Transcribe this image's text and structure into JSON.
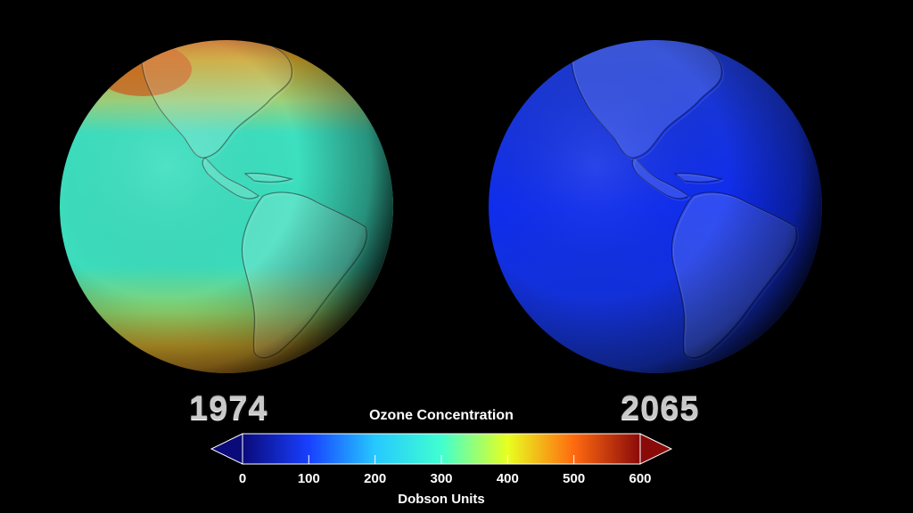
{
  "panels": {
    "left_year": "1974",
    "right_year": "2065"
  },
  "colorbar": {
    "title": "Ozone Concentration",
    "units_label": "Dobson Units",
    "min": 0,
    "max": 600,
    "ticks": [
      "0",
      "100",
      "200",
      "300",
      "400",
      "500",
      "600"
    ],
    "stops": [
      {
        "value": 0,
        "color": "#0a0a7a"
      },
      {
        "value": 100,
        "color": "#1840ff"
      },
      {
        "value": 200,
        "color": "#26c8ff"
      },
      {
        "value": 300,
        "color": "#40ffd0"
      },
      {
        "value": 400,
        "color": "#e8ff20"
      },
      {
        "value": 500,
        "color": "#ff6a10"
      },
      {
        "value": 600,
        "color": "#8a0a0a"
      }
    ],
    "under_color": "#0a0a7a",
    "over_color": "#8a0a0a"
  },
  "colors": {
    "background": "#000000",
    "globe_1974_base": "#36e0c0",
    "globe_1974_polar": "#d4a020",
    "globe_2065_base": "#1030e0"
  }
}
